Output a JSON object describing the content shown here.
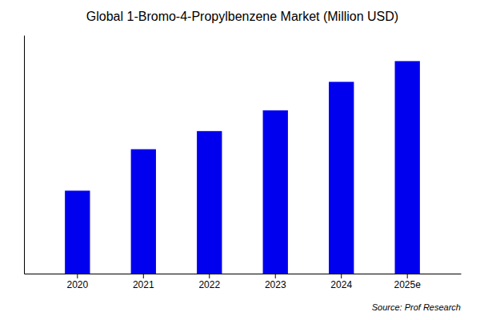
{
  "chart_data": {
    "type": "bar",
    "title": "Global 1-Bromo-4-Propylbenzene Market (Million USD)",
    "categories": [
      "2020",
      "2021",
      "2022",
      "2023",
      "2024",
      "2025e"
    ],
    "values": [
      32,
      48,
      55,
      63,
      74,
      82
    ],
    "color": "#0000EE",
    "ylim": [
      0,
      92
    ],
    "yticks": [],
    "grid": false,
    "tick_labels": "x",
    "annotations": [
      "Source: Prof Research"
    ]
  }
}
